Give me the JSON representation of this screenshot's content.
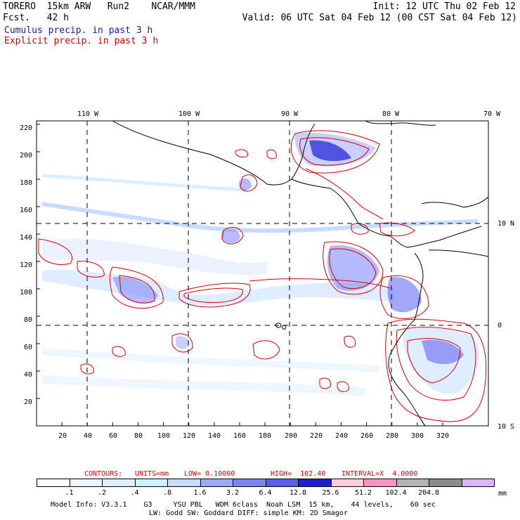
{
  "header": {
    "model": "TORERO  15km ARW   Run2    NCAR/MMM",
    "fcst": "Fcst.   42 h",
    "init": "Init: 12 UTC Thu 02 Feb 12",
    "valid": "Valid: 06 UTC Sat 04 Feb 12 (00 CST Sat 04 Feb 12)",
    "legend_cumulus": "Cumulus precip. in past 3 h",
    "legend_explicit": "Explicit precip. in past 3 h"
  },
  "colors": {
    "cumulus": "#1a1aa6",
    "explicit": "#d40000",
    "coast": "#000000",
    "grid": "#000000"
  },
  "top_lon_labels": [
    "110 W",
    "100 W",
    "90 W",
    "80 W",
    "70 W"
  ],
  "right_lat_labels": [
    "10 N",
    "0",
    "10 S"
  ],
  "y_ticks": [
    "220",
    "200",
    "180",
    "160",
    "140",
    "120",
    "100",
    "80",
    "60",
    "40",
    "20"
  ],
  "x_ticks": [
    "20",
    "40",
    "60",
    "80",
    "100",
    "120",
    "140",
    "160",
    "180",
    "200",
    "220",
    "240",
    "260",
    "280",
    "300",
    "320"
  ],
  "contour_info": {
    "label": "CONTOURS:",
    "units": "UNITS=mm",
    "low": "LOW= 0.10000",
    "high": "HIGH=  102.40",
    "interval": "INTERVAL=X  4.0000"
  },
  "colorbar": {
    "colors": [
      "#ffffff",
      "#eef6ff",
      "#ddefff",
      "#ccf2ff",
      "#c6ddff",
      "#9da8ff",
      "#7a84ff",
      "#5a5cf5",
      "#1e1ed2",
      "#ffcdd8",
      "#f596c0",
      "#b4b4b4",
      "#8c8c8c",
      "#dcb4ff"
    ],
    "labels": [
      ".1",
      ".2",
      ".4",
      ".8",
      "1.6",
      "3.2",
      "6.4",
      "12.8",
      "25.6",
      "51.2",
      "102.4",
      "204.8"
    ],
    "units": "mm"
  },
  "footer": {
    "line1": "Model Info: V3.3.1    G3     YSU PBL   WDM 6class  Noah LSM  15 km,    44 levels,    60 sec",
    "line2": "LW: Godd SW: Goddard DIFF: simple KM: 2D Smagor"
  }
}
